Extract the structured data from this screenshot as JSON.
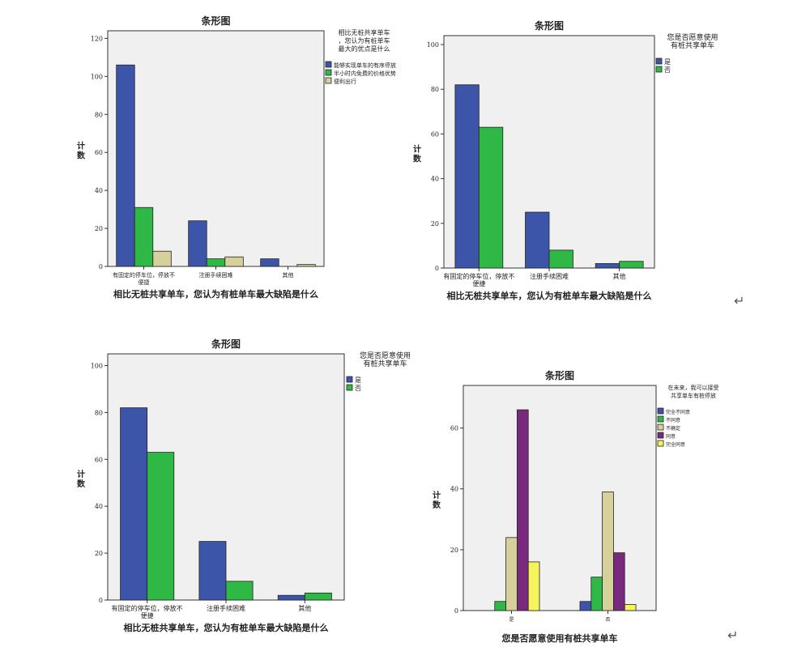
{
  "return_mark": "↵",
  "chart_data": [
    {
      "type": "bar",
      "title": "条形图",
      "xlabel": "相比无桩共享单车，您认为有桩单车最大缺陷是什么",
      "ylabel": "计数",
      "ylim": [
        0,
        124
      ],
      "yticks": [
        0,
        20,
        40,
        60,
        80,
        100,
        120
      ],
      "legend_title": "相比无桩共享单车，您认为有桩单车最大的优点是什么",
      "legend": "right",
      "categories": [
        "有固定的停车位，停放不便捷",
        "注册手续困难",
        "其他"
      ],
      "series": [
        {
          "name": "能够实现单车的有序停放",
          "color": "#3d55a8",
          "values": [
            106,
            24,
            4
          ]
        },
        {
          "name": "半小时内免费的价格优势",
          "color": "#2fb845",
          "values": [
            31,
            4,
            0
          ]
        },
        {
          "name": "便利出行",
          "color": "#d6d09a",
          "values": [
            8,
            5,
            1
          ]
        }
      ]
    },
    {
      "type": "bar",
      "title": "条形图",
      "xlabel": "相比无桩共享单车，您认为有桩单车最大缺陷是什么",
      "ylabel": "计数",
      "ylim": [
        0,
        104
      ],
      "yticks": [
        0,
        20,
        40,
        60,
        80,
        100
      ],
      "legend_title": "您是否愿意使用有桩共享单车",
      "legend": "right",
      "categories": [
        "有固定的停车位，停放不便捷",
        "注册手续困难",
        "其他"
      ],
      "series": [
        {
          "name": "是",
          "color": "#3d55a8",
          "values": [
            82,
            25,
            2
          ]
        },
        {
          "name": "否",
          "color": "#2fb845",
          "values": [
            63,
            8,
            3
          ]
        }
      ]
    },
    {
      "type": "bar",
      "title": "条形图",
      "xlabel": "相比无桩共享单车，您认为有桩单车最大缺陷是什么",
      "ylabel": "计数",
      "ylim": [
        0,
        105
      ],
      "yticks": [
        0,
        20,
        40,
        60,
        80,
        100
      ],
      "legend_title": "您是否愿意使用有桩共享单车",
      "legend": "right",
      "categories": [
        "有固定的停车位，停放不便捷",
        "注册手续困难",
        "其他"
      ],
      "series": [
        {
          "name": "是",
          "color": "#3d55a8",
          "values": [
            82,
            25,
            2
          ]
        },
        {
          "name": "否",
          "color": "#2fb845",
          "values": [
            63,
            8,
            3
          ]
        }
      ]
    },
    {
      "type": "bar",
      "title": "条形图",
      "xlabel": "您是否愿意使用有桩共享单车",
      "ylabel": "计数",
      "ylim": [
        0,
        74
      ],
      "yticks": [
        0,
        20,
        40,
        60
      ],
      "legend_title": "在未来，我可以接受共享单车有桩停放",
      "legend": "right",
      "categories": [
        "是",
        "否"
      ],
      "series": [
        {
          "name": "完全不同意",
          "color": "#3d55a8",
          "values": [
            0,
            3
          ]
        },
        {
          "name": "不同意",
          "color": "#2fb845",
          "values": [
            3,
            11
          ]
        },
        {
          "name": "不确定",
          "color": "#d6d09a",
          "values": [
            24,
            39
          ]
        },
        {
          "name": "同意",
          "color": "#7a2a7e",
          "values": [
            66,
            19
          ]
        },
        {
          "name": "完全同意",
          "color": "#f7f35a",
          "values": [
            16,
            2
          ]
        }
      ]
    }
  ]
}
